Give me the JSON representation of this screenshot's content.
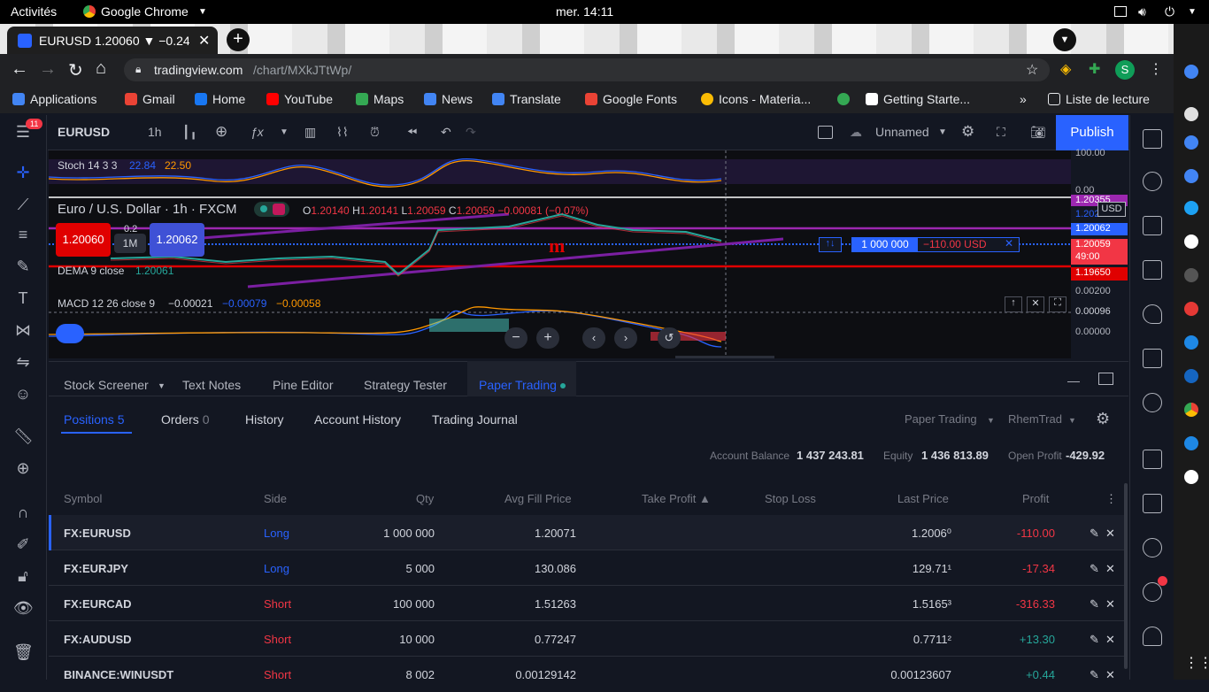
{
  "os": {
    "activities": "Activités",
    "app": "Google Chrome",
    "clock": "mer. 14:11"
  },
  "browser": {
    "tab_title": "EURUSD 1.20060 ▼ −0.24%",
    "url_host": "tradingview.com",
    "url_path": "/chart/MXkJTtWp/",
    "profile_initial": "S",
    "bookmarks": [
      {
        "label": "Applications",
        "color": "#4285f4"
      },
      {
        "label": "Gmail",
        "color": "#ea4335"
      },
      {
        "label": "Home",
        "color": "#1877f2"
      },
      {
        "label": "YouTube",
        "color": "#ff0000"
      },
      {
        "label": "Maps",
        "color": "#34a853"
      },
      {
        "label": "News",
        "color": "#4285f4"
      },
      {
        "label": "Translate",
        "color": "#4285f4"
      },
      {
        "label": "Google Fonts",
        "color": "#ea4335"
      },
      {
        "label": "Icons - Materia...",
        "color": "#fbbc04"
      },
      {
        "label": "",
        "color": "#34a853"
      },
      {
        "label": "Getting Starte...",
        "color": "#ffffff"
      }
    ],
    "reading_list": "Liste de lecture",
    "overflow": "»"
  },
  "toolbar": {
    "symbol": "EURUSD",
    "interval": "1h",
    "layout_name": "Unnamed",
    "publish": "Publish",
    "badge": "11"
  },
  "chart": {
    "stoch_label": "Stoch 14 3 3",
    "stoch_k": "22.84",
    "stoch_d": "22.50",
    "title": "Euro / U.S. Dollar · 1h · FXCM",
    "ohlc": {
      "o_label": "O",
      "o": "1.20140",
      "h_label": "H",
      "h": "1.20141",
      "l_label": "L",
      "l": "1.20059",
      "c_label": "C",
      "c": "1.20059",
      "chg": "−0.00081 (−0.07%)"
    },
    "sell_price": "1.20060",
    "buy_price": "1.20062",
    "spread": "0.2",
    "qty_button": "1M",
    "dema_label": "DEMA 9 close",
    "dema_value": "1.20061",
    "macd_label": "MACD 12 26 close 9",
    "macd_vals": [
      "−0.00021",
      "−0.00079",
      "−0.00058"
    ],
    "position_qty": "1 000 000",
    "position_pl": "−110.00 USD",
    "axis": {
      "stoch": [
        "100.00",
        "0.00"
      ],
      "price": [
        "1.20355",
        "1.20211",
        "1.20062",
        "1.20059",
        "49:00",
        "1.19650"
      ],
      "currency": "USD",
      "macd": [
        "0.00200",
        "0.00096",
        "0.00000"
      ]
    }
  },
  "panel": {
    "tabs": [
      "Stock Screener",
      "Text Notes",
      "Pine Editor",
      "Strategy Tester",
      "Paper Trading"
    ],
    "subtabs": {
      "positions": "Positions",
      "positions_count": "5",
      "orders": "Orders",
      "orders_count": "0",
      "history": "History",
      "account_history": "Account History",
      "journal": "Trading Journal"
    },
    "broker": "Paper Trading",
    "account": "RhemTrad",
    "balance_label": "Account Balance",
    "balance": "1 437 243.81",
    "equity_label": "Equity",
    "equity": "1 436 813.89",
    "open_profit_label": "Open Profit",
    "open_profit": "-429.92",
    "columns": [
      "Symbol",
      "Side",
      "Qty",
      "Avg Fill Price",
      "Take Profit ▲",
      "Stop Loss",
      "Last Price",
      "Profit"
    ],
    "rows": [
      {
        "symbol": "FX:EURUSD",
        "side": "Long",
        "qty": "1 000 000",
        "avg": "1.20071",
        "last": "1.2006⁰",
        "profit": "-110.00"
      },
      {
        "symbol": "FX:EURJPY",
        "side": "Long",
        "qty": "5 000",
        "avg": "130.086",
        "last": "129.71¹",
        "profit": "-17.34"
      },
      {
        "symbol": "FX:EURCAD",
        "side": "Short",
        "qty": "100 000",
        "avg": "1.51263",
        "last": "1.5165³",
        "profit": "-316.33"
      },
      {
        "symbol": "FX:AUDUSD",
        "side": "Short",
        "qty": "10 000",
        "avg": "0.77247",
        "last": "0.7711²",
        "profit": "+13.30"
      },
      {
        "symbol": "BINANCE:WINUSDT",
        "side": "Short",
        "qty": "8 002",
        "avg": "0.00129142",
        "last": "0.00123607",
        "profit": "+0.44"
      }
    ]
  },
  "colors": {
    "accent": "#2962ff",
    "negative": "#f23645",
    "positive": "#26a69a",
    "bg": "#131722"
  }
}
